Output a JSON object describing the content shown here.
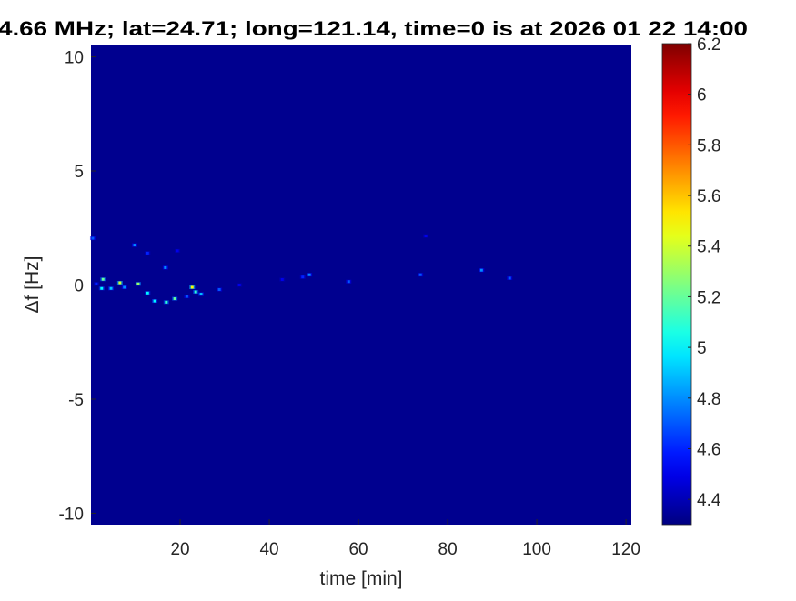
{
  "chart_data": {
    "type": "heatmap",
    "title": "4.66 MHz;  lat=24.71; long=121.14, time=0 is at 2026 01 22 14:00",
    "xlabel": "time [min]",
    "ylabel": "Δf [Hz]",
    "xlim": [
      0,
      121.2
    ],
    "ylim": [
      -10.5,
      10.5
    ],
    "xticks": [
      20,
      40,
      60,
      80,
      100,
      120
    ],
    "yticks": [
      -10,
      -5,
      0,
      5,
      10
    ],
    "colormap": "jet",
    "clim": [
      4.3,
      6.2
    ],
    "colorbar_ticks": [
      4.4,
      4.6,
      4.8,
      5,
      5.2,
      5.4,
      5.6,
      5.8,
      6,
      6.2
    ],
    "background_value": 4.3,
    "background_color": "#00008F",
    "points": [
      {
        "t": 0.4,
        "f": 2.05,
        "v": 4.7
      },
      {
        "t": 9.8,
        "f": 1.75,
        "v": 4.8
      },
      {
        "t": 12.7,
        "f": 1.4,
        "v": 4.6
      },
      {
        "t": 16.7,
        "f": 0.76,
        "v": 4.8
      },
      {
        "t": 19.4,
        "f": 1.5,
        "v": 4.5
      },
      {
        "t": 2.7,
        "f": 0.25,
        "v": 5.2
      },
      {
        "t": 6.5,
        "f": 0.1,
        "v": 5.4
      },
      {
        "t": 10.6,
        "f": 0.05,
        "v": 5.3
      },
      {
        "t": 2.4,
        "f": -0.15,
        "v": 5.0
      },
      {
        "t": 4.5,
        "f": -0.15,
        "v": 4.9
      },
      {
        "t": 12.7,
        "f": -0.35,
        "v": 5.0
      },
      {
        "t": 14.3,
        "f": -0.7,
        "v": 5.0
      },
      {
        "t": 16.9,
        "f": -0.75,
        "v": 5.1
      },
      {
        "t": 18.8,
        "f": -0.6,
        "v": 5.2
      },
      {
        "t": 22.7,
        "f": -0.1,
        "v": 5.5
      },
      {
        "t": 23.5,
        "f": -0.3,
        "v": 5.1
      },
      {
        "t": 24.7,
        "f": -0.4,
        "v": 4.9
      },
      {
        "t": 28.8,
        "f": -0.2,
        "v": 4.7
      },
      {
        "t": 33.3,
        "f": 0.0,
        "v": 4.5
      },
      {
        "t": 42.9,
        "f": 0.24,
        "v": 4.5
      },
      {
        "t": 47.5,
        "f": 0.35,
        "v": 4.6
      },
      {
        "t": 49.0,
        "f": 0.45,
        "v": 4.8
      },
      {
        "t": 57.8,
        "f": 0.15,
        "v": 4.7
      },
      {
        "t": 73.9,
        "f": 0.45,
        "v": 4.7
      },
      {
        "t": 75.1,
        "f": 2.15,
        "v": 4.5
      },
      {
        "t": 87.6,
        "f": 0.65,
        "v": 4.8
      },
      {
        "t": 93.9,
        "f": 0.3,
        "v": 4.7
      },
      {
        "t": 7.5,
        "f": -0.1,
        "v": 4.8
      },
      {
        "t": 1.2,
        "f": 0.05,
        "v": 4.6
      },
      {
        "t": 21.5,
        "f": -0.5,
        "v": 4.7
      }
    ]
  }
}
